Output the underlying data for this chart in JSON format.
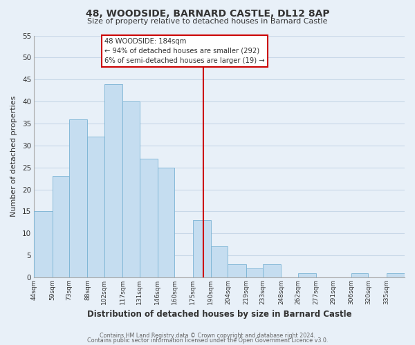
{
  "title": "48, WOODSIDE, BARNARD CASTLE, DL12 8AP",
  "subtitle": "Size of property relative to detached houses in Barnard Castle",
  "xlabel": "Distribution of detached houses by size in Barnard Castle",
  "ylabel": "Number of detached properties",
  "footer_line1": "Contains HM Land Registry data © Crown copyright and database right 2024.",
  "footer_line2": "Contains public sector information licensed under the Open Government Licence v3.0.",
  "bar_lefts": [
    44,
    59,
    73,
    88,
    102,
    117,
    131,
    146,
    160,
    175,
    190,
    204,
    219,
    233,
    248,
    262,
    277,
    291,
    306,
    320,
    335
  ],
  "bar_rights": [
    59,
    73,
    88,
    102,
    117,
    131,
    146,
    160,
    175,
    190,
    204,
    219,
    233,
    248,
    262,
    277,
    291,
    306,
    320,
    335,
    350
  ],
  "bar_heights": [
    15,
    23,
    36,
    32,
    44,
    40,
    27,
    25,
    0,
    13,
    7,
    3,
    2,
    3,
    0,
    1,
    0,
    0,
    1,
    0,
    1
  ],
  "bar_color": "#c5ddf0",
  "bar_edgecolor": "#7ab3d4",
  "vline_x": 184,
  "vline_color": "#cc0000",
  "annotation_title": "48 WOODSIDE: 184sqm",
  "annotation_line1": "← 94% of detached houses are smaller (292)",
  "annotation_line2": "6% of semi-detached houses are larger (19) →",
  "annotation_box_facecolor": "#ffffff",
  "annotation_box_edgecolor": "#cc0000",
  "xlim_left": 44,
  "xlim_right": 350,
  "ylim_top": 55,
  "tick_labels": [
    "44sqm",
    "59sqm",
    "73sqm",
    "88sqm",
    "102sqm",
    "117sqm",
    "131sqm",
    "146sqm",
    "160sqm",
    "175sqm",
    "190sqm",
    "204sqm",
    "219sqm",
    "233sqm",
    "248sqm",
    "262sqm",
    "277sqm",
    "291sqm",
    "306sqm",
    "320sqm",
    "335sqm"
  ],
  "tick_positions": [
    44,
    59,
    73,
    88,
    102,
    117,
    131,
    146,
    160,
    175,
    190,
    204,
    219,
    233,
    248,
    262,
    277,
    291,
    306,
    320,
    335
  ],
  "yticks": [
    0,
    5,
    10,
    15,
    20,
    25,
    30,
    35,
    40,
    45,
    50,
    55
  ],
  "grid_color": "#c8d8e8",
  "bg_color": "#e8f0f8",
  "spine_color": "#aaaaaa",
  "text_color": "#333333",
  "footer_color": "#666666"
}
